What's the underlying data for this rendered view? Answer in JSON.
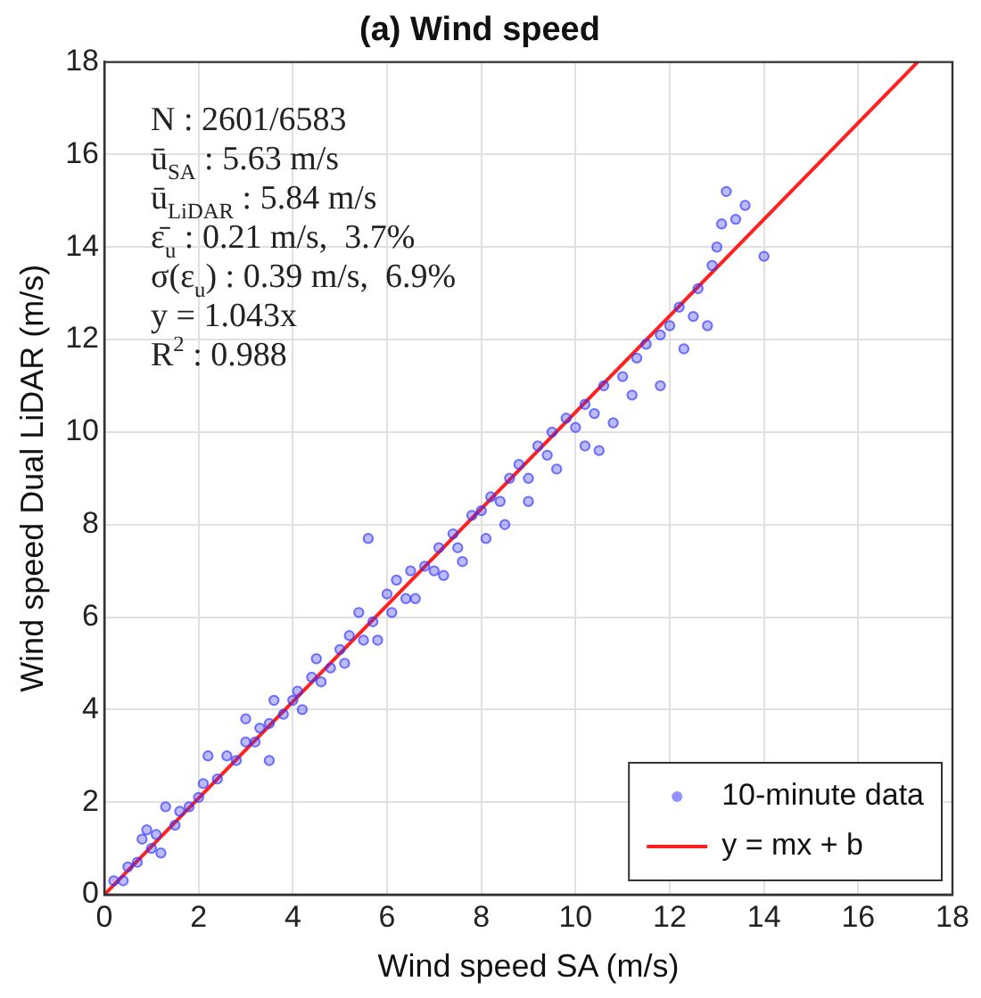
{
  "chart_data": {
    "type": "scatter",
    "title": "(a) Wind speed",
    "xlabel": "Wind speed SA (m/s)",
    "ylabel": "Wind speed Dual LiDAR (m/s)",
    "annotations": [
      "N : 2601/6583",
      "ū$_{SA}$ : 5.63 m/s",
      "ū$_{LiDAR}$ : 5.84 m/s",
      "ε̄$_{u}$ : 0.21 m/s,  3.7%",
      "σ(ε$_{u}$) : 0.39 m/s,  6.9%",
      "y = 1.043x",
      "R$^{2}$ : 0.988"
    ],
    "xlim": [
      0,
      18
    ],
    "ylim": [
      0,
      18
    ],
    "xticks": [
      0,
      2,
      4,
      6,
      8,
      10,
      12,
      14,
      16,
      18
    ],
    "yticks": [
      0,
      2,
      4,
      6,
      8,
      10,
      12,
      14,
      16,
      18
    ],
    "grid": true,
    "legend": "bottom right",
    "series": [
      {
        "name": "10-minute data",
        "color": "#3333ff",
        "marker": "circle",
        "x": [
          0.2,
          0.4,
          0.5,
          0.7,
          0.8,
          0.9,
          1.0,
          1.1,
          1.2,
          1.3,
          1.5,
          1.6,
          1.8,
          2.0,
          2.1,
          2.2,
          2.4,
          2.6,
          2.8,
          3.0,
          3.0,
          3.2,
          3.3,
          3.5,
          3.6,
          3.8,
          4.0,
          4.1,
          4.2,
          4.4,
          4.5,
          4.6,
          4.8,
          5.0,
          5.1,
          5.2,
          5.4,
          5.5,
          5.7,
          5.8,
          6.0,
          6.1,
          6.2,
          6.4,
          6.5,
          6.6,
          6.8,
          7.0,
          7.1,
          7.2,
          7.4,
          7.5,
          7.6,
          7.8,
          8.0,
          8.1,
          8.2,
          8.4,
          8.5,
          8.6,
          8.8,
          9.0,
          9.0,
          9.2,
          9.4,
          9.5,
          9.6,
          9.8,
          10.0,
          10.2,
          10.2,
          10.4,
          10.5,
          10.6,
          10.8,
          11.0,
          11.2,
          11.3,
          11.5,
          11.8,
          11.8,
          12.0,
          12.2,
          12.3,
          12.5,
          12.6,
          12.8,
          12.9,
          13.0,
          13.1,
          13.2,
          13.4,
          13.6,
          14.0,
          5.6,
          3.5
        ],
        "values": [
          0.3,
          0.3,
          0.6,
          0.7,
          1.2,
          1.4,
          1.0,
          1.3,
          0.9,
          1.9,
          1.5,
          1.8,
          1.9,
          2.1,
          2.4,
          3.0,
          2.5,
          3.0,
          2.9,
          3.3,
          3.8,
          3.3,
          3.6,
          3.7,
          4.2,
          3.9,
          4.2,
          4.4,
          4.0,
          4.7,
          5.1,
          4.6,
          4.9,
          5.3,
          5.0,
          5.6,
          6.1,
          5.5,
          5.9,
          5.5,
          6.5,
          6.1,
          6.8,
          6.4,
          7.0,
          6.4,
          7.1,
          7.0,
          7.5,
          6.9,
          7.8,
          7.5,
          7.2,
          8.2,
          8.3,
          7.7,
          8.6,
          8.5,
          8.0,
          9.0,
          9.3,
          9.0,
          8.5,
          9.7,
          9.5,
          10.0,
          9.2,
          10.3,
          10.1,
          9.7,
          10.6,
          10.4,
          9.6,
          11.0,
          10.2,
          11.2,
          10.8,
          11.6,
          11.9,
          12.1,
          11.0,
          12.3,
          12.7,
          11.8,
          12.5,
          13.1,
          12.3,
          13.6,
          14.0,
          14.5,
          15.2,
          14.6,
          14.9,
          13.8,
          7.7,
          2.9
        ]
      },
      {
        "name": "y = mx + b",
        "type": "line",
        "color": "#ff2020",
        "marker": "none",
        "line_style": "solid",
        "x": [
          0,
          17.26
        ],
        "values": [
          0,
          18
        ]
      }
    ]
  }
}
